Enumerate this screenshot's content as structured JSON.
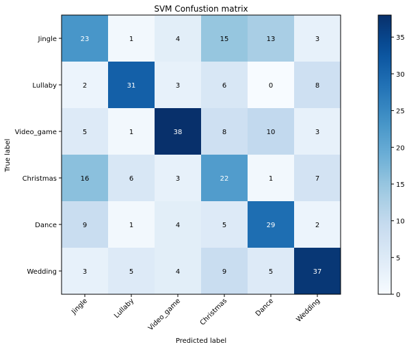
{
  "chart_data": {
    "type": "heatmap",
    "title": "SVM Confustion matrix",
    "xlabel": "Predicted label",
    "ylabel": "True label",
    "x_categories": [
      "Jingle",
      "Lullaby",
      "Video_game",
      "Christmas",
      "Dance",
      "Wedding"
    ],
    "y_categories": [
      "Jingle",
      "Lullaby",
      "Video_game",
      "Christmas",
      "Dance",
      "Wedding"
    ],
    "values": [
      [
        23,
        1,
        4,
        15,
        13,
        3
      ],
      [
        2,
        31,
        3,
        6,
        0,
        8
      ],
      [
        5,
        1,
        38,
        8,
        10,
        3
      ],
      [
        16,
        6,
        3,
        22,
        1,
        7
      ],
      [
        9,
        1,
        4,
        5,
        29,
        2
      ],
      [
        3,
        5,
        4,
        9,
        5,
        37
      ]
    ],
    "colormap": "Blues",
    "value_range": [
      0,
      38
    ],
    "colorbar_ticks": [
      "0",
      "5",
      "10",
      "15",
      "20",
      "25",
      "30",
      "35"
    ],
    "colorbar_tick_values": [
      0,
      5,
      10,
      15,
      20,
      25,
      30,
      35
    ],
    "text_color_light": "#ffffff",
    "text_color_dark": "#000000"
  }
}
